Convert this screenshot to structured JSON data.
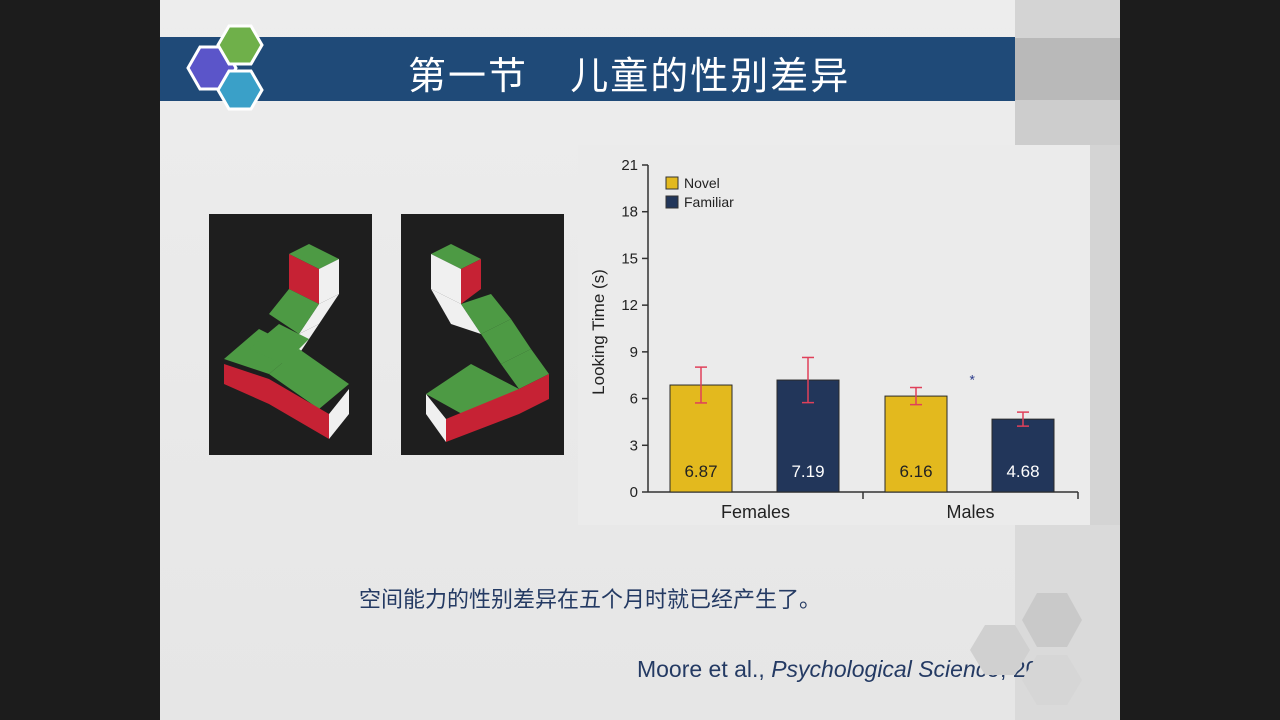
{
  "slide": {
    "title": "第一节   儿童的性别差异",
    "caption": "空间能力的性别差异在五个月时就已经产生了。",
    "citation": {
      "authors": "Moore et al., ",
      "journal": "Psychological Science",
      "year": ", 2008"
    }
  },
  "colors": {
    "title_bar": "#1f4a78",
    "novel": "#e3b91e",
    "familiar": "#22365a",
    "error_bar": "#e0405a",
    "logo_purple": "#5b55c9",
    "logo_green": "#6fb04a",
    "logo_blue": "#3aa0c8",
    "cube_green": "#4d9a44",
    "cube_red": "#c62234"
  },
  "chart_data": {
    "type": "bar",
    "categories": [
      "Females",
      "Males"
    ],
    "series": [
      {
        "name": "Novel",
        "values": [
          6.87,
          6.16
        ],
        "errors": [
          1.15,
          0.55
        ]
      },
      {
        "name": "Familiar",
        "values": [
          7.19,
          4.68
        ],
        "errors": [
          1.45,
          0.45
        ]
      }
    ],
    "ylabel": "Looking Time (s)",
    "xlabel": "",
    "ylim": [
      0,
      21
    ],
    "yticks": [
      "0",
      "3",
      "6",
      "9",
      "12",
      "15",
      "18",
      "21"
    ],
    "value_labels": [
      [
        "6.87",
        "7.19"
      ],
      [
        "6.16",
        "4.68"
      ]
    ],
    "significance_marker": "*",
    "legend_position": "top-left",
    "grid": false
  }
}
